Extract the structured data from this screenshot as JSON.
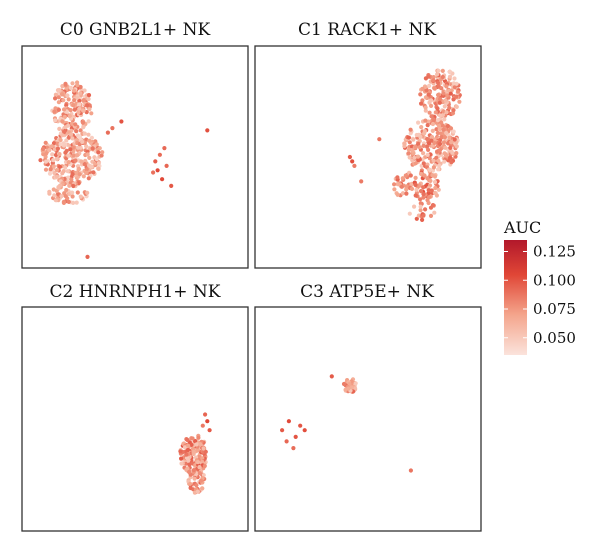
{
  "chart_data": {
    "type": "scatter",
    "legend": {
      "title": "AUC",
      "ticks": [
        "0.125",
        "0.100",
        "0.075",
        "0.050"
      ],
      "tick_values": [
        0.125,
        0.1,
        0.075,
        0.05
      ],
      "range": [
        0.035,
        0.135
      ],
      "placement": "right",
      "low_color": "#fbe3dc",
      "high_color": "#b2182b"
    },
    "panels": [
      {
        "title": "C0 GNB2L1+ NK",
        "clusters": [
          {
            "cx": 0.22,
            "cy": 0.28,
            "rx": 0.09,
            "ry": 0.12,
            "n": 180,
            "auc": 0.07
          },
          {
            "cx": 0.22,
            "cy": 0.5,
            "rx": 0.14,
            "ry": 0.12,
            "n": 260,
            "auc": 0.068
          },
          {
            "cx": 0.21,
            "cy": 0.66,
            "rx": 0.09,
            "ry": 0.05,
            "n": 60,
            "auc": 0.066
          }
        ],
        "outliers": [
          [
            0.4,
            0.37
          ],
          [
            0.44,
            0.34
          ],
          [
            0.38,
            0.39
          ],
          [
            0.59,
            0.52
          ],
          [
            0.6,
            0.56
          ],
          [
            0.61,
            0.49
          ],
          [
            0.62,
            0.6
          ],
          [
            0.63,
            0.46
          ],
          [
            0.64,
            0.54
          ],
          [
            0.66,
            0.63
          ],
          [
            0.58,
            0.57
          ],
          [
            0.82,
            0.38
          ],
          [
            0.29,
            0.95
          ]
        ]
      },
      {
        "title": "C1 RACK1+ NK",
        "clusters": [
          {
            "cx": 0.82,
            "cy": 0.22,
            "rx": 0.09,
            "ry": 0.12,
            "n": 170,
            "auc": 0.072
          },
          {
            "cx": 0.78,
            "cy": 0.45,
            "rx": 0.12,
            "ry": 0.12,
            "n": 230,
            "auc": 0.07
          },
          {
            "cx": 0.72,
            "cy": 0.63,
            "rx": 0.11,
            "ry": 0.07,
            "n": 90,
            "auc": 0.076
          },
          {
            "cx": 0.74,
            "cy": 0.74,
            "rx": 0.06,
            "ry": 0.05,
            "n": 20,
            "auc": 0.074
          }
        ],
        "outliers": [
          [
            0.42,
            0.5
          ],
          [
            0.44,
            0.54
          ],
          [
            0.43,
            0.52
          ],
          [
            0.47,
            0.61
          ],
          [
            0.55,
            0.42
          ]
        ]
      },
      {
        "title": "C2 HNRNPH1+ NK",
        "clusters": [
          {
            "cx": 0.76,
            "cy": 0.66,
            "rx": 0.06,
            "ry": 0.09,
            "n": 150,
            "auc": 0.074
          },
          {
            "cx": 0.77,
            "cy": 0.77,
            "rx": 0.04,
            "ry": 0.06,
            "n": 50,
            "auc": 0.072
          }
        ],
        "outliers": [
          [
            0.81,
            0.48
          ],
          [
            0.82,
            0.51
          ],
          [
            0.8,
            0.53
          ],
          [
            0.83,
            0.55
          ]
        ]
      },
      {
        "title": "C3 ATP5E+ NK",
        "clusters": [
          {
            "cx": 0.42,
            "cy": 0.35,
            "rx": 0.028,
            "ry": 0.032,
            "n": 35,
            "auc": 0.072
          }
        ],
        "outliers": [
          [
            0.34,
            0.31
          ],
          [
            0.15,
            0.51
          ],
          [
            0.12,
            0.55
          ],
          [
            0.14,
            0.6
          ],
          [
            0.18,
            0.58
          ],
          [
            0.2,
            0.53
          ],
          [
            0.22,
            0.55
          ],
          [
            0.17,
            0.63
          ],
          [
            0.69,
            0.73
          ]
        ]
      }
    ]
  }
}
